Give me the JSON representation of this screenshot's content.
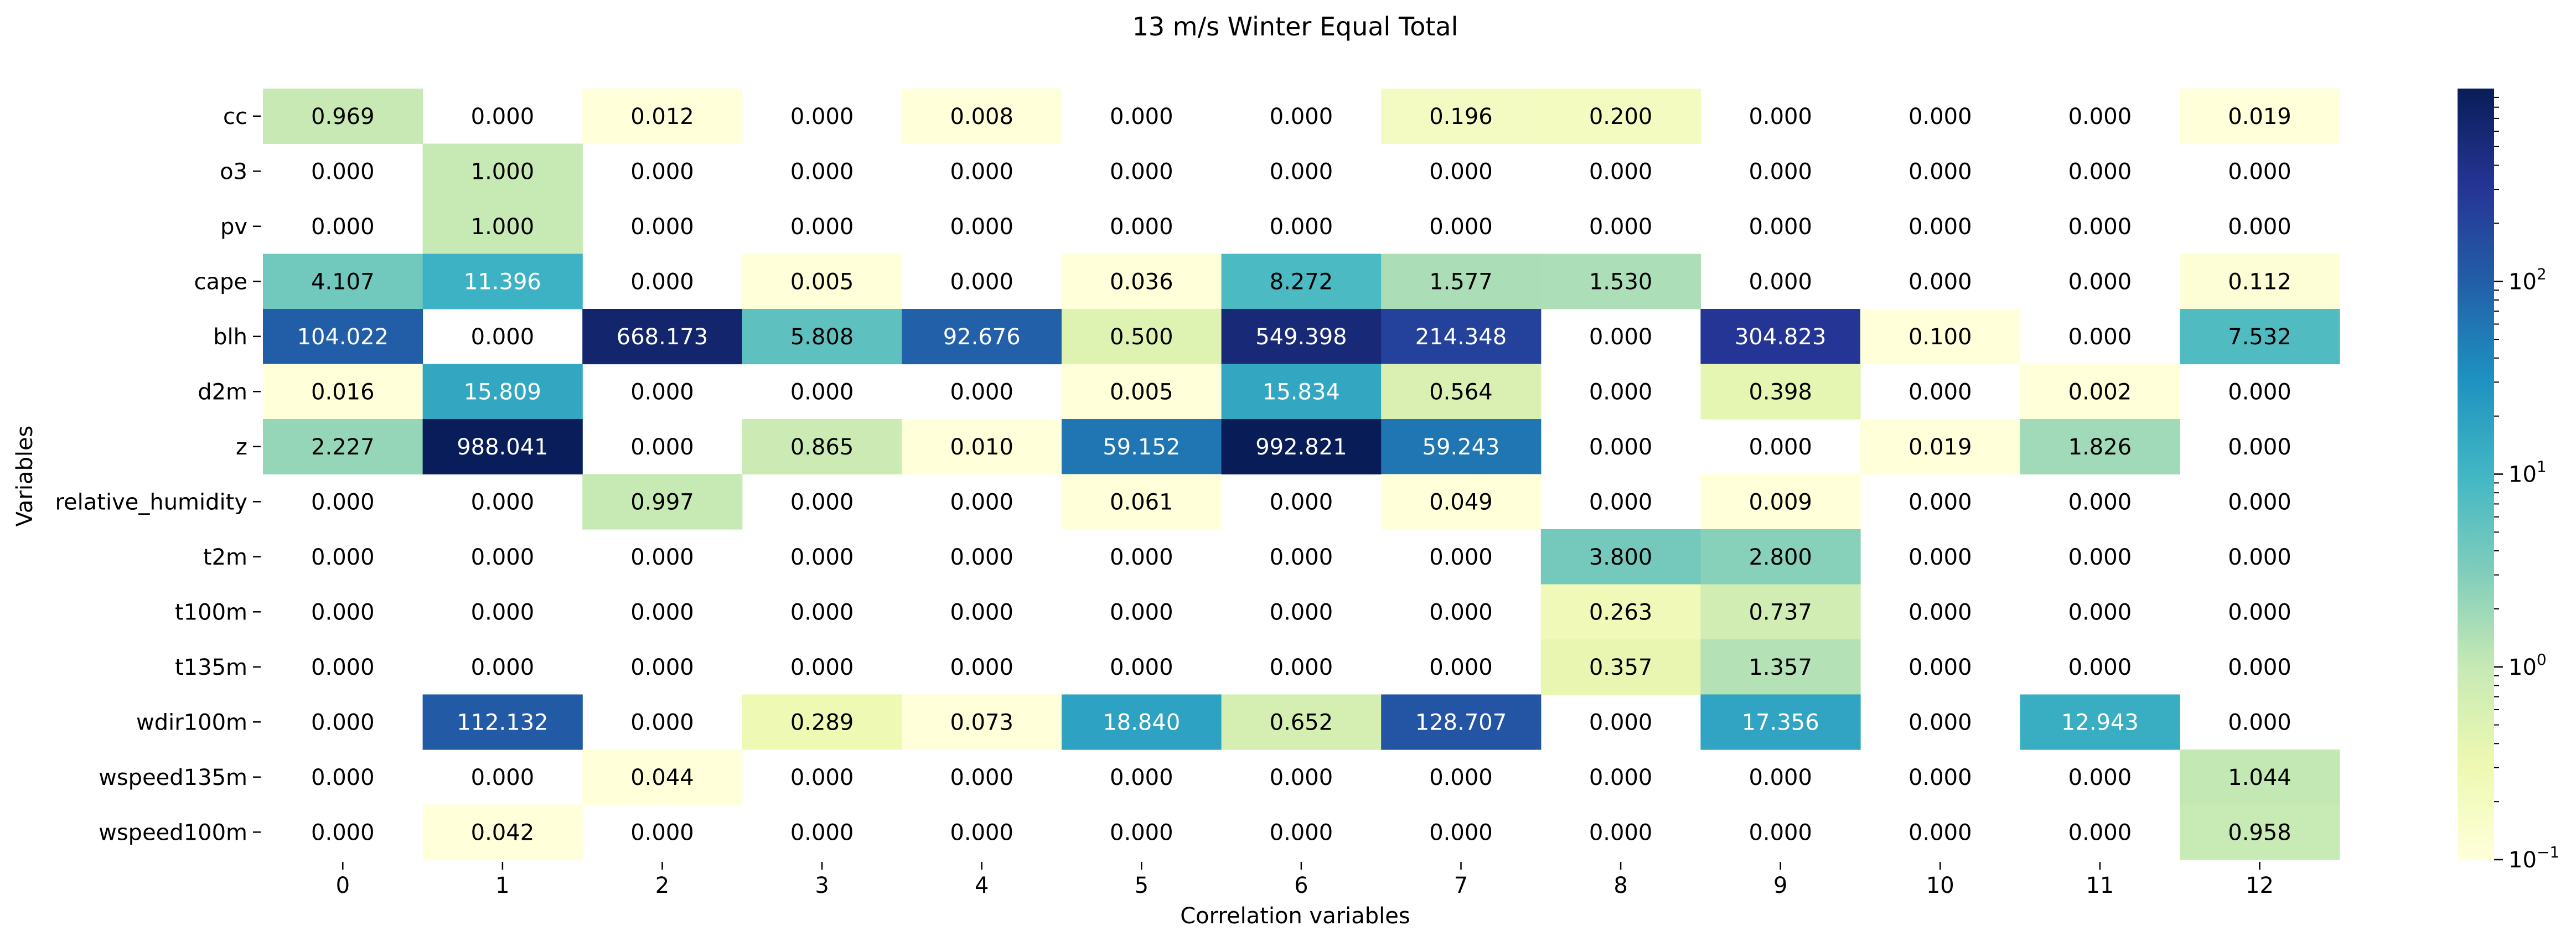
{
  "chart_data": {
    "type": "heatmap",
    "title": "13 m/s Winter Equal Total",
    "xlabel": "Correlation variables",
    "ylabel": "Variables",
    "x_categories": [
      "0",
      "1",
      "2",
      "3",
      "4",
      "5",
      "6",
      "7",
      "8",
      "9",
      "10",
      "11",
      "12"
    ],
    "y_categories": [
      "cc",
      "o3",
      "pv",
      "cape",
      "blh",
      "d2m",
      "z",
      "relative_humidity",
      "t2m",
      "t100m",
      "t135m",
      "wdir100m",
      "wspeed135m",
      "wspeed100m"
    ],
    "values": [
      [
        0.969,
        0.0,
        0.012,
        0.0,
        0.008,
        0.0,
        0.0,
        0.196,
        0.2,
        0.0,
        0.0,
        0.0,
        0.019
      ],
      [
        0.0,
        1.0,
        0.0,
        0.0,
        0.0,
        0.0,
        0.0,
        0.0,
        0.0,
        0.0,
        0.0,
        0.0,
        0.0
      ],
      [
        0.0,
        1.0,
        0.0,
        0.0,
        0.0,
        0.0,
        0.0,
        0.0,
        0.0,
        0.0,
        0.0,
        0.0,
        0.0
      ],
      [
        4.107,
        11.396,
        0.0,
        0.005,
        0.0,
        0.036,
        8.272,
        1.577,
        1.53,
        0.0,
        0.0,
        0.0,
        0.112
      ],
      [
        104.022,
        0.0,
        668.173,
        5.808,
        92.676,
        0.5,
        549.398,
        214.348,
        0.0,
        304.823,
        0.1,
        0.0,
        7.532
      ],
      [
        0.016,
        15.809,
        0.0,
        0.0,
        0.0,
        0.005,
        15.834,
        0.564,
        0.0,
        0.398,
        0.0,
        0.002,
        0.0
      ],
      [
        2.227,
        988.041,
        0.0,
        0.865,
        0.01,
        59.152,
        992.821,
        59.243,
        0.0,
        0.0,
        0.019,
        1.826,
        0.0
      ],
      [
        0.0,
        0.0,
        0.997,
        0.0,
        0.0,
        0.061,
        0.0,
        0.049,
        0.0,
        0.009,
        0.0,
        0.0,
        0.0
      ],
      [
        0.0,
        0.0,
        0.0,
        0.0,
        0.0,
        0.0,
        0.0,
        0.0,
        3.8,
        2.8,
        0.0,
        0.0,
        0.0
      ],
      [
        0.0,
        0.0,
        0.0,
        0.0,
        0.0,
        0.0,
        0.0,
        0.0,
        0.263,
        0.737,
        0.0,
        0.0,
        0.0
      ],
      [
        0.0,
        0.0,
        0.0,
        0.0,
        0.0,
        0.0,
        0.0,
        0.0,
        0.357,
        1.357,
        0.0,
        0.0,
        0.0
      ],
      [
        0.0,
        112.132,
        0.0,
        0.289,
        0.073,
        18.84,
        0.652,
        128.707,
        0.0,
        17.356,
        0.0,
        12.943,
        0.0
      ],
      [
        0.0,
        0.0,
        0.044,
        0.0,
        0.0,
        0.0,
        0.0,
        0.0,
        0.0,
        0.0,
        0.0,
        0.0,
        1.044
      ],
      [
        0.0,
        0.042,
        0.0,
        0.0,
        0.0,
        0.0,
        0.0,
        0.0,
        0.0,
        0.0,
        0.0,
        0.0,
        0.958
      ]
    ],
    "value_format": "0.000",
    "colormap": "YlGnBu",
    "color_scale": "log",
    "color_range": [
      0.1,
      1000
    ],
    "zero_cells": "blank (white)",
    "colorbar": {
      "position": "right",
      "ticks": [
        {
          "value": 100,
          "base": "10",
          "exp": "2"
        },
        {
          "value": 10,
          "base": "10",
          "exp": "1"
        },
        {
          "value": 1,
          "base": "10",
          "exp": "0"
        },
        {
          "value": 0.1,
          "base": "10",
          "exp": "−1"
        }
      ]
    },
    "grid": false,
    "text_colors": {
      "dark_text": "#000000",
      "light_text": "#ffffff"
    }
  }
}
